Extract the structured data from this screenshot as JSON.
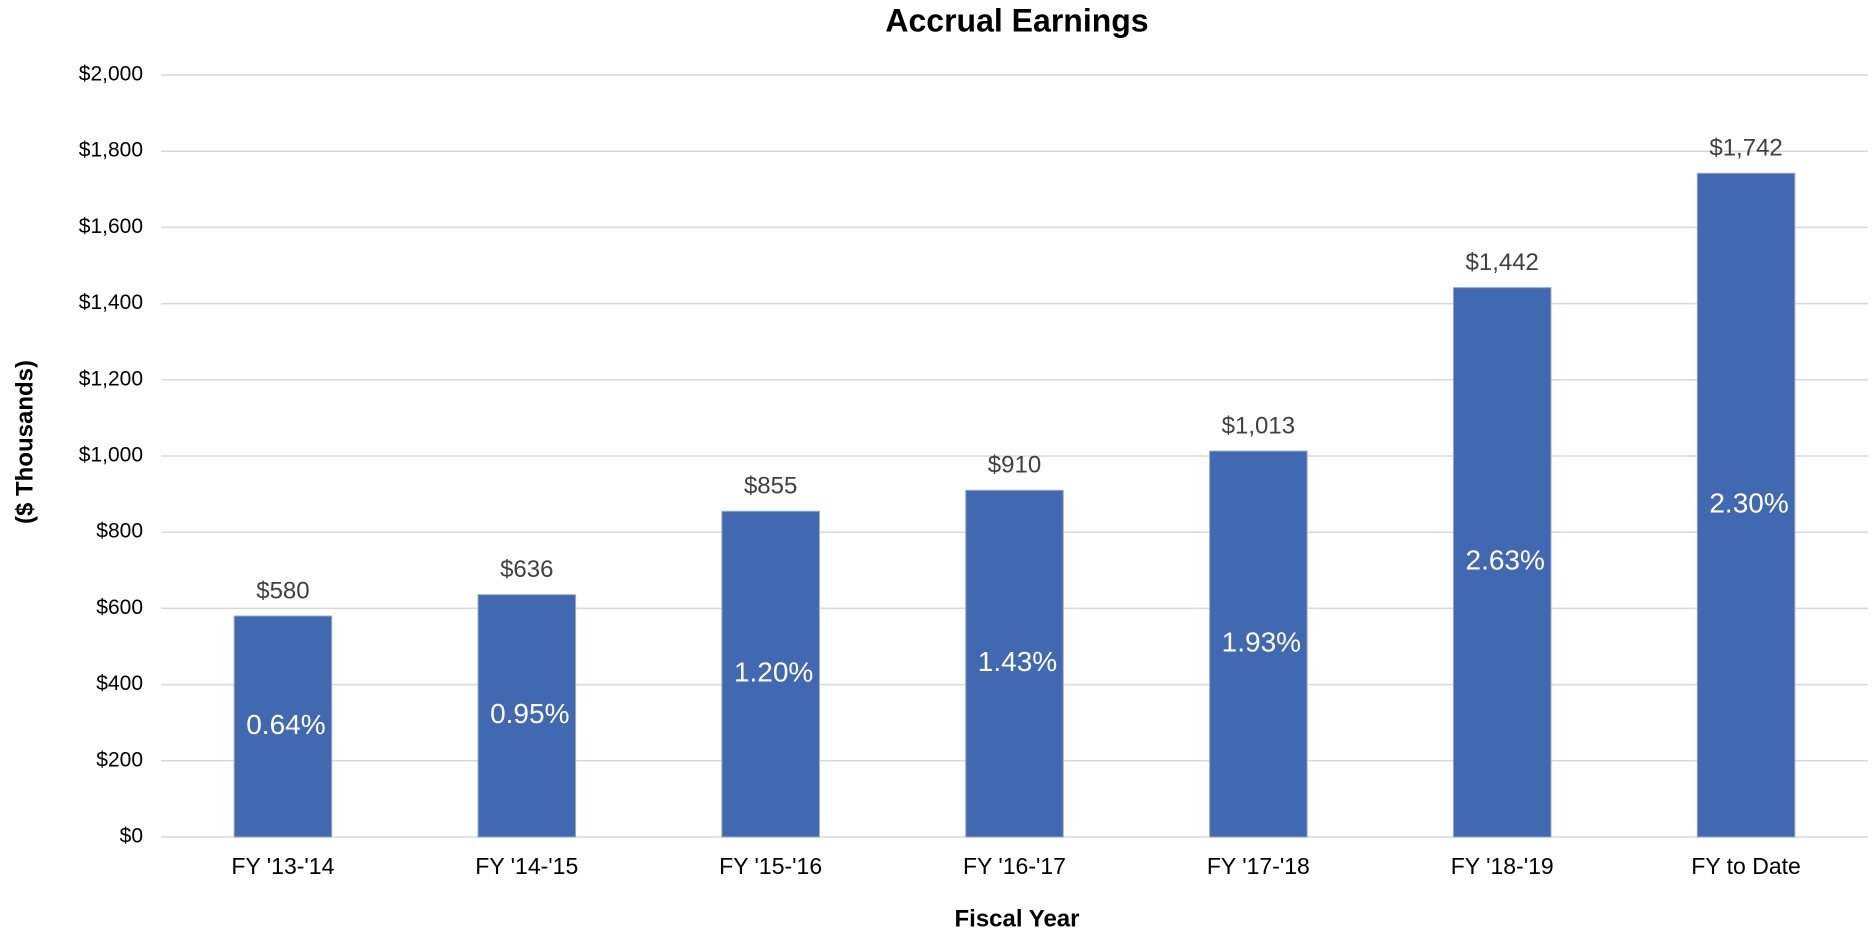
{
  "chart_data": {
    "type": "bar",
    "title": "Accrual Earnings",
    "x_label": "Fiscal Year",
    "y_label": "($ Thousands)",
    "categories": [
      "FY '13-'14",
      "FY '14-'15",
      "FY '15-'16",
      "FY '16-'17",
      "FY '17-'18",
      "FY '18-'19",
      "FY to Date"
    ],
    "values": [
      580,
      636,
      855,
      910,
      1013,
      1442,
      1742
    ],
    "value_labels": [
      "$580",
      "$636",
      "$855",
      "$910",
      "$1,013",
      "$1,442",
      "$1,742"
    ],
    "rates": [
      0.64,
      0.95,
      1.2,
      1.43,
      1.93,
      2.63,
      2.3
    ],
    "rate_labels": [
      "0.64%",
      "0.95%",
      "1.20%",
      "1.43%",
      "1.93%",
      "2.63%",
      "2.30%"
    ],
    "color": "#4169b2",
    "ylim": [
      0,
      2000
    ],
    "yticks": [
      {
        "value": 0,
        "label": "$0"
      },
      {
        "value": 200,
        "label": "$200"
      },
      {
        "value": 400,
        "label": "$400"
      },
      {
        "value": 600,
        "label": "$600"
      },
      {
        "value": 800,
        "label": "$800"
      },
      {
        "value": 1000,
        "label": "$1,000"
      },
      {
        "value": 1200,
        "label": "$1,200"
      },
      {
        "value": 1400,
        "label": "$1,400"
      },
      {
        "value": 1600,
        "label": "$1,600"
      },
      {
        "value": 1800,
        "label": "$1,800"
      },
      {
        "value": 2000,
        "label": "$2,000"
      }
    ],
    "grid": true
  }
}
